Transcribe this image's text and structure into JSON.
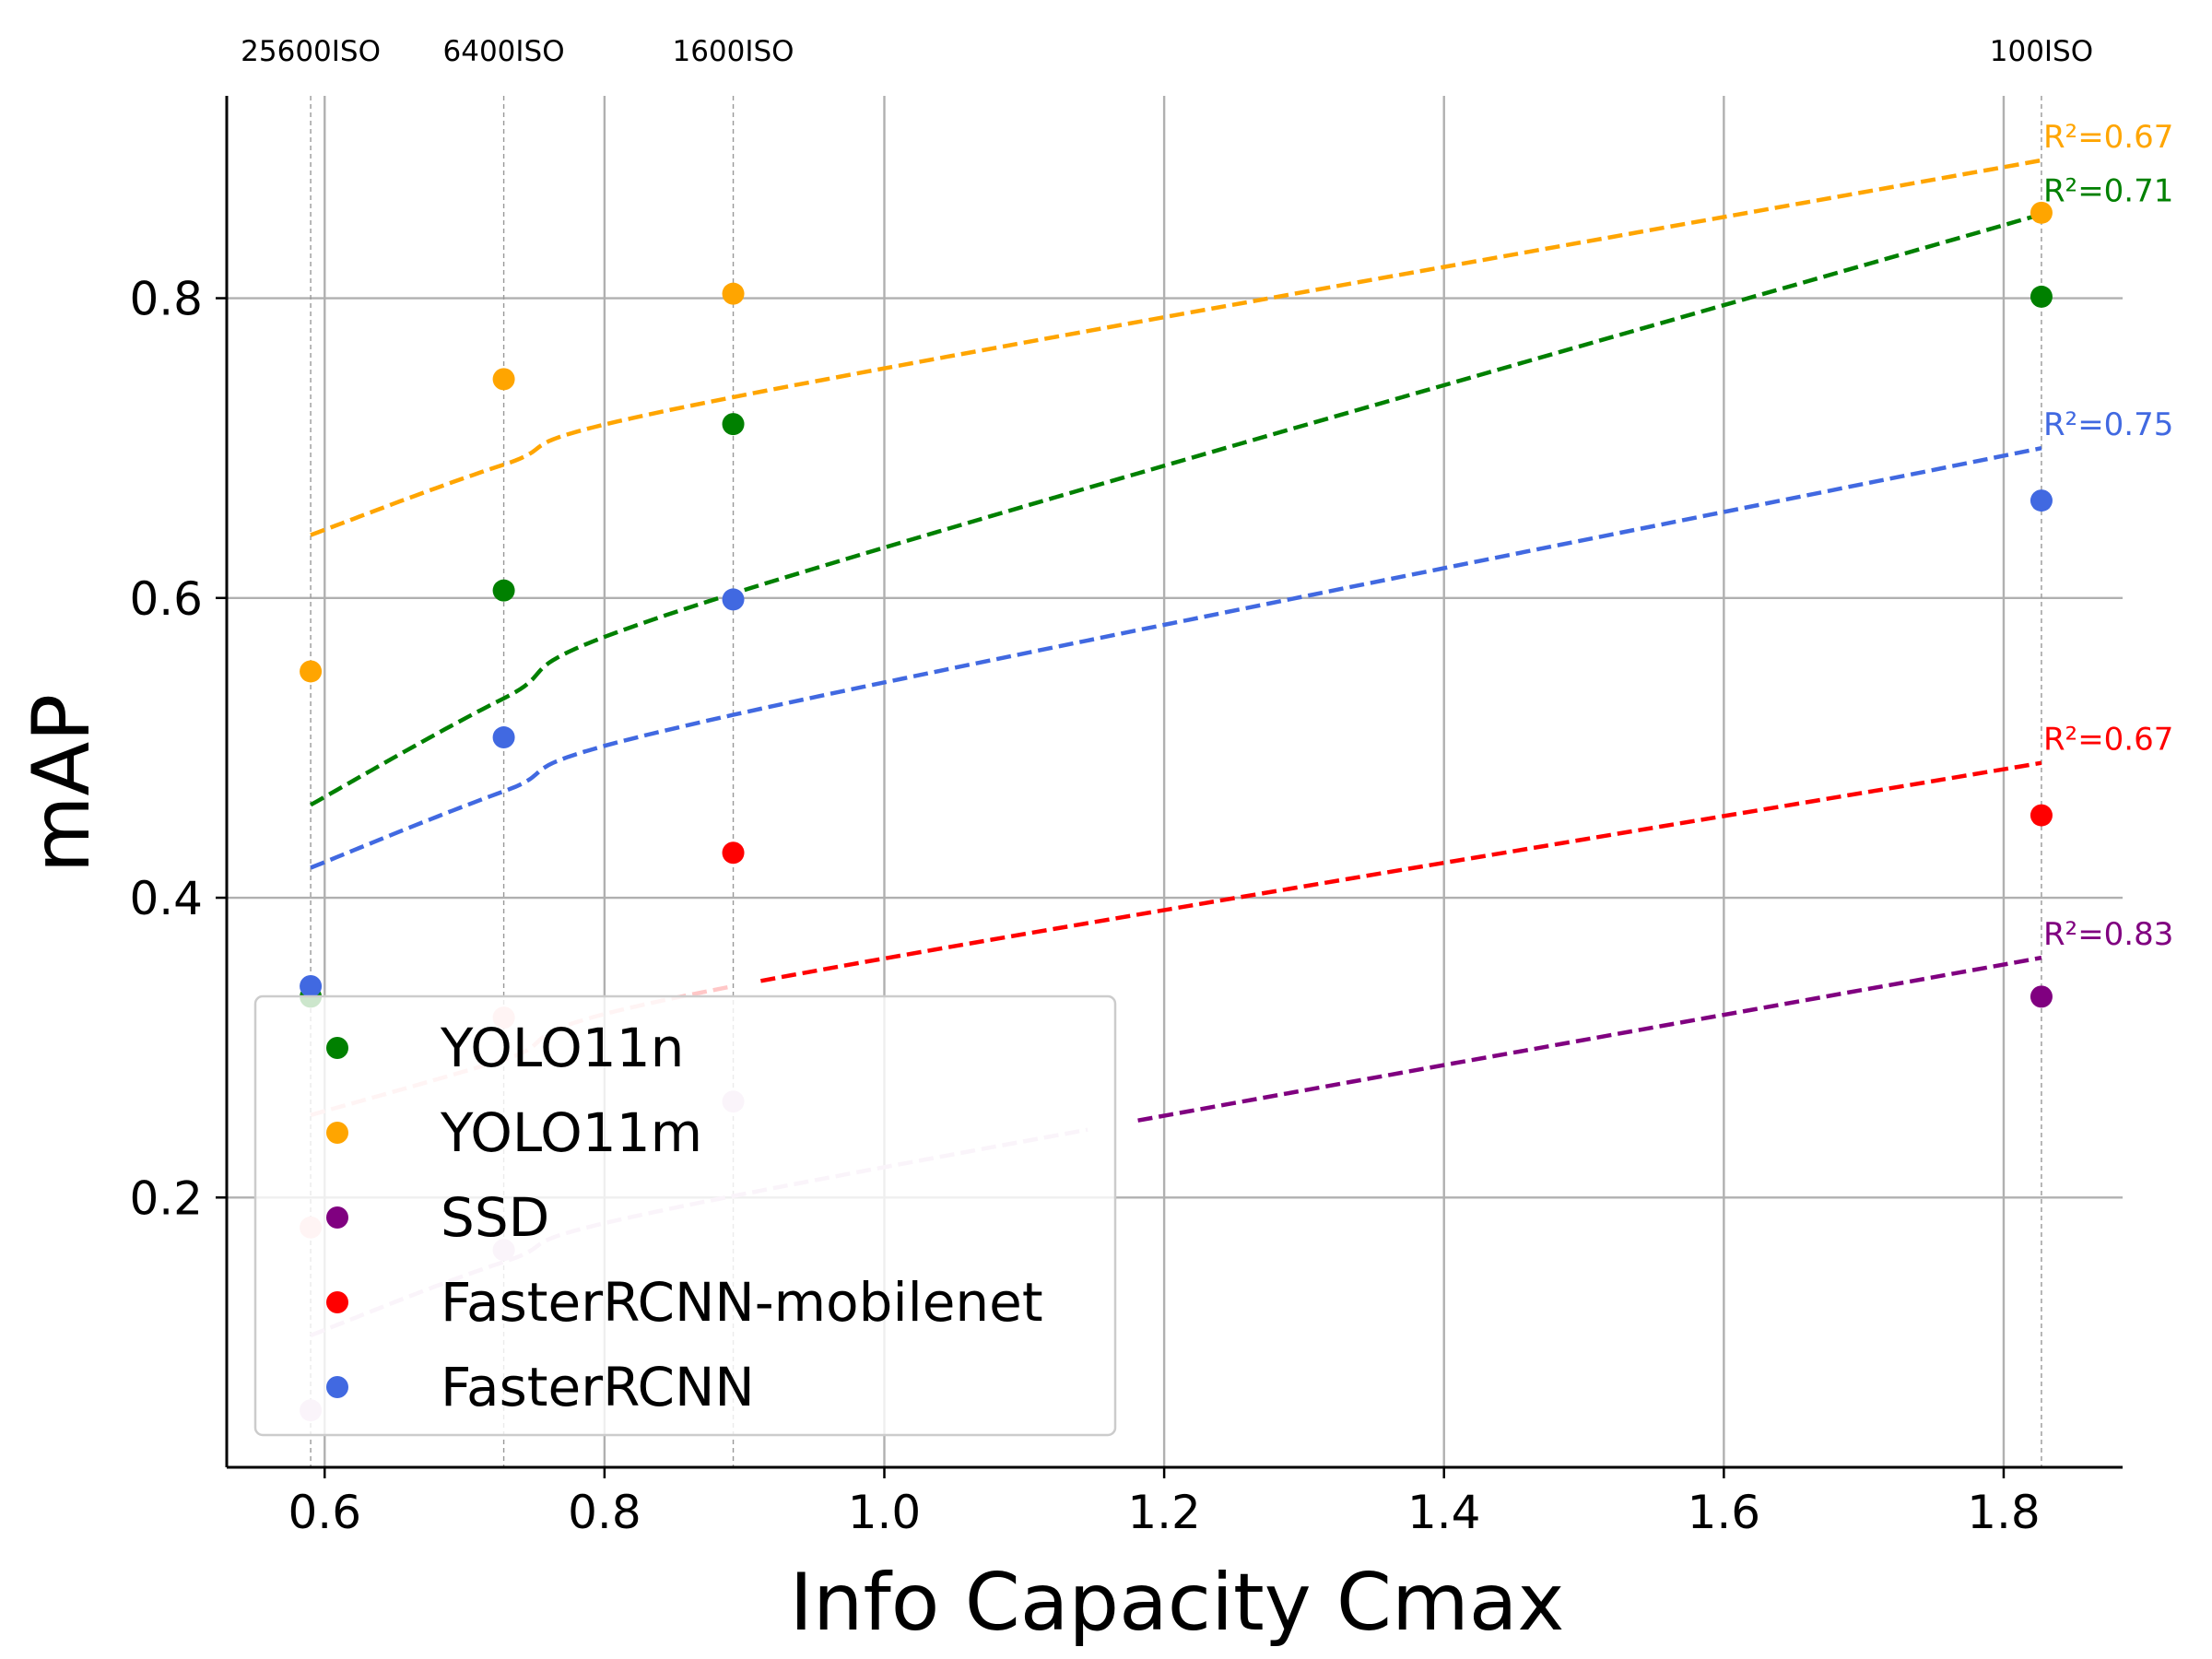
{
  "chart_data": {
    "type": "scatter",
    "title": "",
    "xlabel": "Info Capacity Cmax",
    "ylabel": "mAP",
    "xlim": [
      0.53,
      1.885
    ],
    "ylim": [
      0.02,
      0.935
    ],
    "x_ticks": [
      0.6,
      0.8,
      1.0,
      1.2,
      1.4,
      1.6,
      1.8
    ],
    "x_tick_labels": [
      "0.6",
      "0.8",
      "1.0",
      "1.2",
      "1.4",
      "1.6",
      "1.8"
    ],
    "y_ticks": [
      0.2,
      0.4,
      0.6,
      0.8
    ],
    "y_tick_labels": [
      "0.2",
      "0.4",
      "0.6",
      "0.8"
    ],
    "grid": true,
    "legend_position": "lower-left",
    "iso_markers": [
      {
        "x": 0.59,
        "label": "25600ISO"
      },
      {
        "x": 0.728,
        "label": "6400ISO"
      },
      {
        "x": 0.892,
        "label": "1600ISO"
      },
      {
        "x": 1.827,
        "label": "100ISO"
      }
    ],
    "x": [
      0.59,
      0.728,
      0.892,
      1.827
    ],
    "series": [
      {
        "name": "YOLO11n",
        "color": "#008000",
        "values": [
          0.334,
          0.605,
          0.716,
          0.801
        ],
        "fit": [
          0.462,
          0.533,
          0.603,
          0.856
        ],
        "r2_label": "R²=0.71",
        "faded_before_x": 0.5
      },
      {
        "name": "YOLO11m",
        "color": "#FFA500",
        "values": [
          0.551,
          0.746,
          0.803,
          0.857
        ],
        "fit": [
          0.642,
          0.689,
          0.734,
          0.892
        ],
        "r2_label": "R²=0.67",
        "faded_before_x": 0.5
      },
      {
        "name": "SSD",
        "color": "#800080",
        "values": [
          0.058,
          0.165,
          0.264,
          0.334
        ],
        "fit": [
          0.108,
          0.157,
          0.201,
          0.36
        ],
        "r2_label": "R²=0.83",
        "faded_before_x": 1.16
      },
      {
        "name": "FasterRCNN-mobilenet",
        "color": "#FF0000",
        "values": [
          0.18,
          0.32,
          0.43,
          0.455
        ],
        "fit": [
          0.255,
          0.292,
          0.341,
          0.49
        ],
        "r2_label": "R²=0.67",
        "faded_before_x": 0.905
      },
      {
        "name": "FasterRCNN",
        "color": "#4169E1",
        "values": [
          0.341,
          0.507,
          0.599,
          0.665
        ],
        "fit": [
          0.42,
          0.471,
          0.522,
          0.7
        ],
        "r2_label": "R²=0.75",
        "faded_before_x": 0.5
      }
    ]
  }
}
